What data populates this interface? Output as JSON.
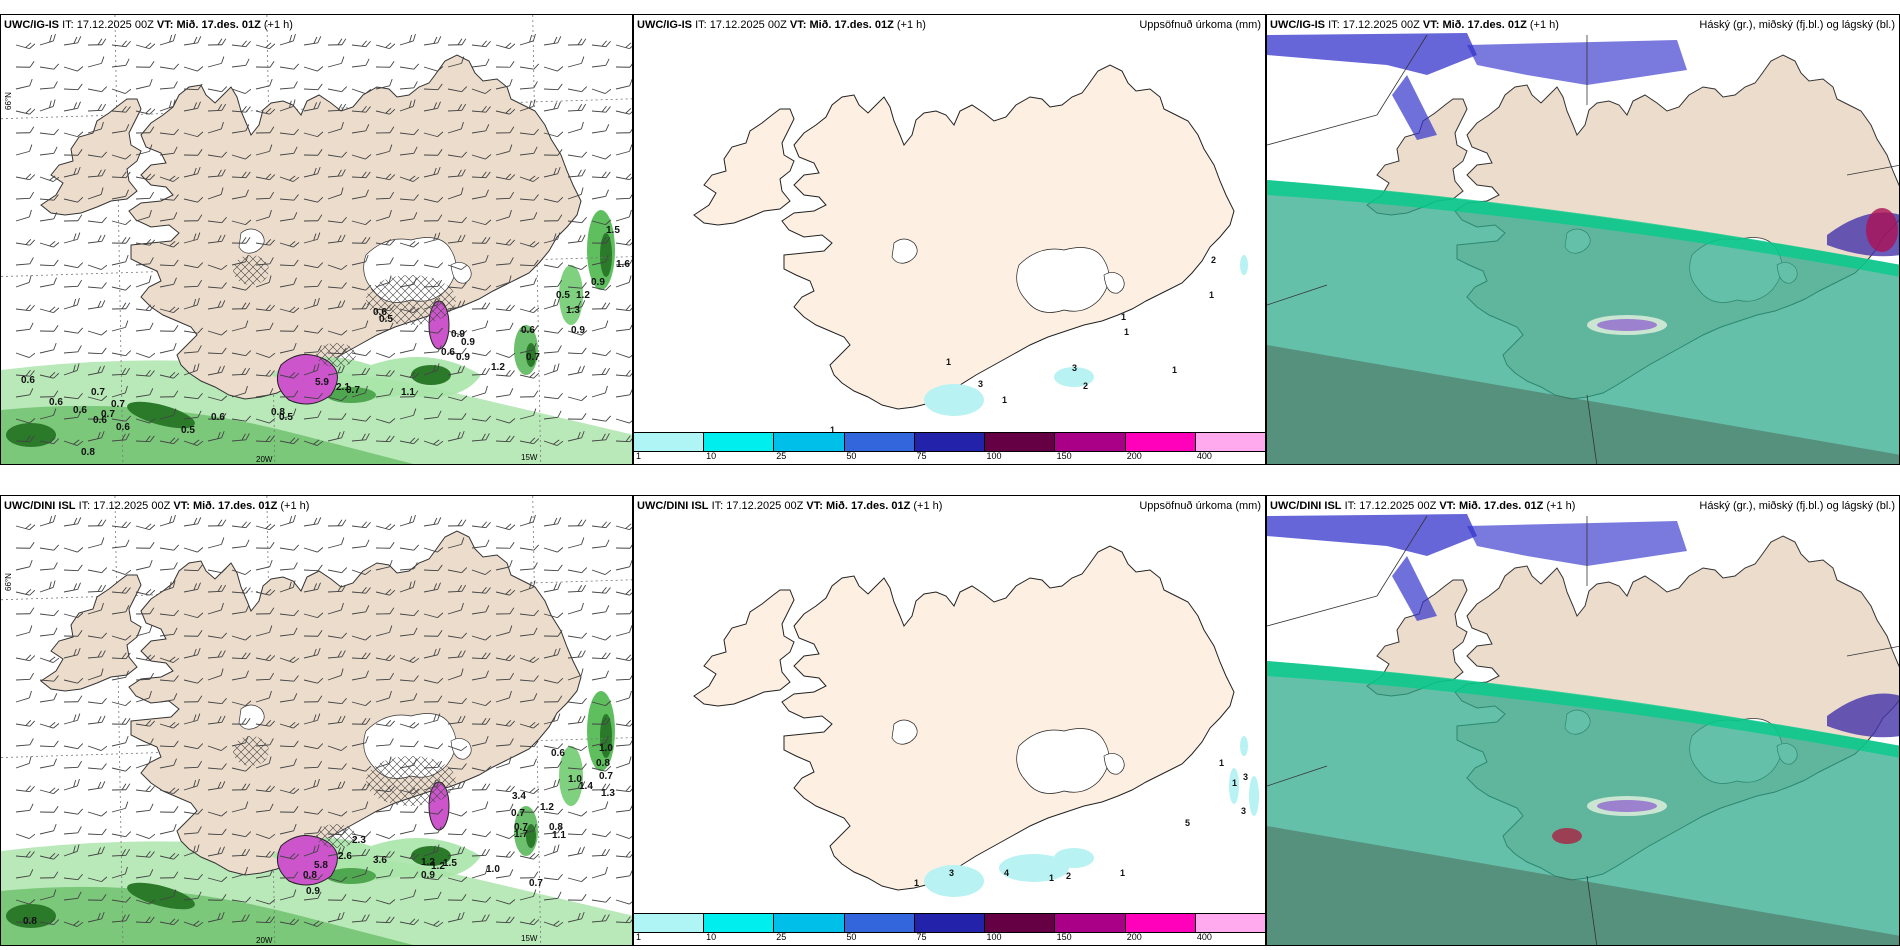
{
  "wind_panels": [
    {
      "model": "UWC/IG-IS",
      "it_label": "IT:",
      "it_value": "17.12.2025 00Z",
      "vt_label": "VT:",
      "vt_value": "Mið. 17.des. 01Z",
      "lead": "(+1 h)",
      "labels": [
        "0.6",
        "0.6",
        "0.7",
        "0.7",
        "0.6",
        "0.7",
        "0.6",
        "0.6",
        "0.5",
        "0.8",
        "0.6",
        "0.8",
        "0.5",
        "1.1",
        "0.9",
        "0.9",
        "0.6",
        "0.9",
        "1.2",
        "0.6",
        "0.7",
        "1.3",
        "0.9",
        "0.5",
        "1.2",
        "0.9",
        "1.5",
        "1.6",
        "5.9",
        "2.1",
        "0.7",
        "0.5",
        "0.6"
      ]
    },
    {
      "model": "UWC/DINI ISL",
      "it_label": "IT:",
      "it_value": "17.12.2025 00Z",
      "vt_label": "VT:",
      "vt_value": "Mið. 17.des. 01Z",
      "lead": "(+1 h)",
      "labels": [
        "0.8",
        "0.8",
        "5.8",
        "2.6",
        "2.3",
        "3.6",
        "0.9",
        "1.2",
        "1.2",
        "1.5",
        "0.9",
        "1.0",
        "0.7",
        "0.7",
        "0.7",
        "0.8",
        "1.1",
        "1.2",
        "1.0",
        "1.4",
        "1.3",
        "0.7",
        "3.4",
        "1.7",
        "0.8",
        "1.0",
        "0.6"
      ]
    }
  ],
  "precip_panels": [
    {
      "model": "UWC/IG-IS",
      "it_label": "IT:",
      "it_value": "17.12.2025 00Z",
      "vt_label": "VT:",
      "vt_value": "Mið. 17.des. 01Z",
      "lead": "(+1 h)",
      "title_right": "Uppsöfnuð úrkoma (mm)",
      "labels": [
        "1",
        "1",
        "3",
        "1",
        "3",
        "2",
        "1",
        "2",
        "1",
        "1",
        "1"
      ]
    },
    {
      "model": "UWC/DINI ISL",
      "it_label": "IT:",
      "it_value": "17.12.2025 00Z",
      "vt_label": "VT:",
      "vt_value": "Mið. 17.des. 01Z",
      "lead": "(+1 h)",
      "title_right": "Uppsöfnuð úrkoma (mm)",
      "labels": [
        "1",
        "3",
        "4",
        "1",
        "2",
        "1",
        "5",
        "3",
        "1",
        "1",
        "3"
      ]
    }
  ],
  "cloud_panels": [
    {
      "model": "UWC/IG-IS",
      "it_label": "IT:",
      "it_value": "17.12.2025 00Z",
      "vt_label": "VT:",
      "vt_value": "Mið. 17.des. 01Z",
      "lead": "(+1 h)",
      "title_right": "Háský (gr.), miðský (fj.bl.) og lágský (bl.)"
    },
    {
      "model": "UWC/DINI ISL",
      "it_label": "IT:",
      "it_value": "17.12.2025 00Z",
      "vt_label": "VT:",
      "vt_value": "Mið. 17.des. 01Z",
      "lead": "(+1 h)",
      "title_right": "Háský (gr.), miðský (fj.bl.) og lágský (bl.)"
    }
  ],
  "colorbar": {
    "colors": [
      "#b0f5f5",
      "#00eeee",
      "#00bfe8",
      "#3366dd",
      "#2222aa",
      "#660044",
      "#aa0088",
      "#ff00bb",
      "#ffaaee"
    ],
    "tick_labels": [
      "1",
      "10",
      "25",
      "50",
      "75",
      "100",
      "150",
      "200",
      "400"
    ]
  },
  "axis_labels": {
    "lat_66": "66°N",
    "lon_20": "20W",
    "lon_15": "15W"
  },
  "colors": {
    "land": "#ecdccc",
    "land_precip": "#fdf0e2",
    "glacier": "#ffffff",
    "precip_green": "#2a7a2a",
    "precip_light_green": "#a8e4a8",
    "snow_magenta": "#cc55cc",
    "cloud_low": "#2aa889",
    "cloud_mid": "#3333cc",
    "cloud_high": "#00cc88"
  }
}
